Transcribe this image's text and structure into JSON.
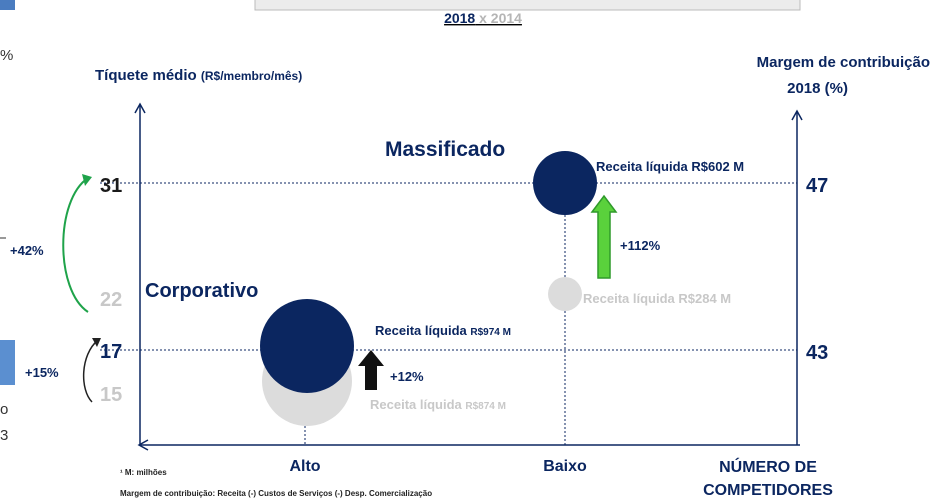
{
  "header": {
    "title_main": "2018",
    "title_rest": " x 2014"
  },
  "axes": {
    "y_label": "Tíquete médio",
    "y_unit": "(R$/membro/mês)",
    "y2_label_1": "Margem de contribuição",
    "y2_label_2": "2018 (%)",
    "left_ticks": [
      "31",
      "22",
      "17",
      "15"
    ],
    "right_ticks": [
      "47",
      "43"
    ],
    "x_categories": [
      "Alto",
      "Baixo"
    ],
    "x_label_1": "NÚMERO DE",
    "x_label_2": "COMPETIDORES"
  },
  "groups": [
    {
      "name": "Massificado",
      "revenue_2018": "Receita líquida R$602 M",
      "growth": "+112%",
      "revenue_2014": "Receita líquida R$284 M"
    },
    {
      "name": "Corporativo",
      "revenue_2018_a": "Receita líquida ",
      "revenue_2018_b": "R$974 M",
      "growth": "+12%",
      "revenue_2014_a": "Receita líquida ",
      "revenue_2014_b": "R$874 M"
    }
  ],
  "changes": {
    "ticket_massificado": "+42%",
    "ticket_corporativo": "+15%"
  },
  "footnotes": [
    "¹ M: milhões",
    "Margem de contribuição: Receita (-) Custos de Serviços (-) Desp. Comercialização"
  ],
  "fragments": [
    "%",
    "o",
    "3"
  ]
}
